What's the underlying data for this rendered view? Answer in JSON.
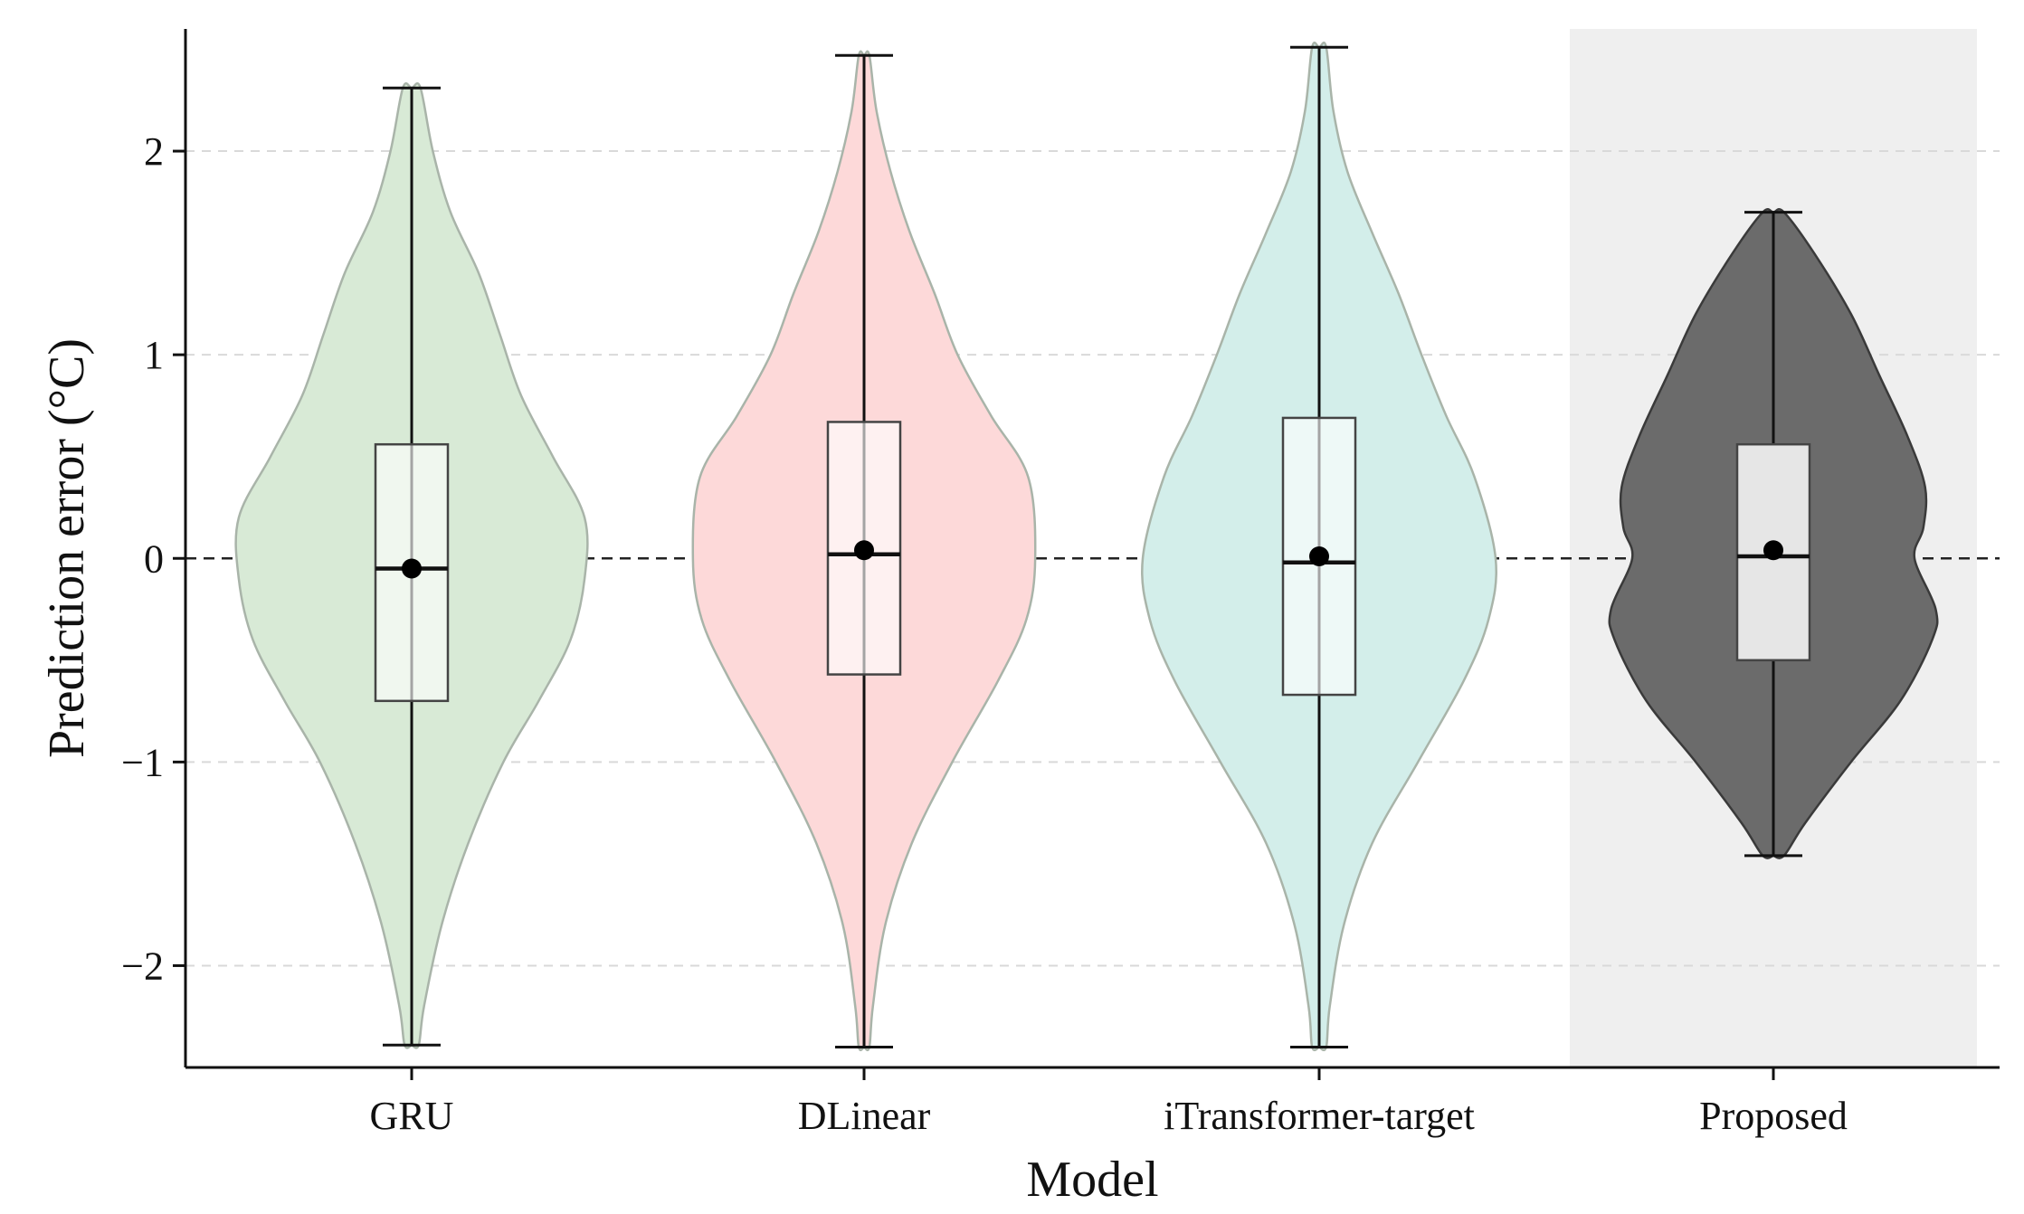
{
  "chart_data": {
    "type": "violin",
    "title": "",
    "xlabel": "Model",
    "ylabel": "Prediction error (°C)",
    "ylim": [
      -2.5,
      2.6
    ],
    "yticks": [
      -2,
      -1,
      0,
      1,
      2
    ],
    "ytick_labels": [
      "−2",
      "−1",
      "0",
      "1",
      "2"
    ],
    "grid": "horizontal dashed",
    "reference_line": 0,
    "highlighted_category": "Proposed",
    "categories": [
      "GRU",
      "DLinear",
      "iTransformer-target",
      "Proposed"
    ],
    "series": [
      {
        "category": "GRU",
        "color": "#d8ead6",
        "min": -2.39,
        "q1": -0.7,
        "median": -0.05,
        "mean": -0.05,
        "q3": 0.56,
        "max": 2.31,
        "density": [
          [
            -2.39,
            0.04
          ],
          [
            -2.2,
            0.07
          ],
          [
            -1.8,
            0.17
          ],
          [
            -1.4,
            0.32
          ],
          [
            -1.0,
            0.52
          ],
          [
            -0.7,
            0.72
          ],
          [
            -0.4,
            0.9
          ],
          [
            -0.1,
            0.98
          ],
          [
            0.2,
            0.98
          ],
          [
            0.5,
            0.8
          ],
          [
            0.8,
            0.62
          ],
          [
            1.1,
            0.5
          ],
          [
            1.4,
            0.38
          ],
          [
            1.7,
            0.22
          ],
          [
            2.0,
            0.12
          ],
          [
            2.31,
            0.05
          ]
        ]
      },
      {
        "category": "DLinear",
        "color": "#fdd9d9",
        "min": -2.4,
        "q1": -0.57,
        "median": 0.02,
        "mean": 0.04,
        "q3": 0.67,
        "max": 2.47,
        "density": [
          [
            -2.4,
            0.03
          ],
          [
            -2.2,
            0.05
          ],
          [
            -1.8,
            0.12
          ],
          [
            -1.4,
            0.27
          ],
          [
            -1.0,
            0.5
          ],
          [
            -0.6,
            0.76
          ],
          [
            -0.3,
            0.92
          ],
          [
            0.0,
            0.97
          ],
          [
            0.4,
            0.93
          ],
          [
            0.7,
            0.72
          ],
          [
            1.0,
            0.53
          ],
          [
            1.3,
            0.4
          ],
          [
            1.6,
            0.26
          ],
          [
            1.9,
            0.15
          ],
          [
            2.2,
            0.07
          ],
          [
            2.47,
            0.03
          ]
        ]
      },
      {
        "category": "iTransformer-target",
        "color": "#d3eeea",
        "min": -2.4,
        "q1": -0.67,
        "median": -0.02,
        "mean": 0.01,
        "q3": 0.69,
        "max": 2.51,
        "density": [
          [
            -2.4,
            0.04
          ],
          [
            -2.2,
            0.06
          ],
          [
            -1.8,
            0.14
          ],
          [
            -1.4,
            0.3
          ],
          [
            -1.0,
            0.56
          ],
          [
            -0.6,
            0.82
          ],
          [
            -0.3,
            0.96
          ],
          [
            0.0,
            1.0
          ],
          [
            0.4,
            0.88
          ],
          [
            0.7,
            0.72
          ],
          [
            1.0,
            0.58
          ],
          [
            1.3,
            0.45
          ],
          [
            1.6,
            0.3
          ],
          [
            1.9,
            0.16
          ],
          [
            2.2,
            0.08
          ],
          [
            2.51,
            0.04
          ]
        ]
      },
      {
        "category": "Proposed",
        "color": "#6b6b6b",
        "min": -1.46,
        "q1": -0.5,
        "median": 0.01,
        "mean": 0.04,
        "q3": 0.56,
        "max": 1.7,
        "density": [
          [
            -1.46,
            0.06
          ],
          [
            -1.3,
            0.18
          ],
          [
            -1.0,
            0.44
          ],
          [
            -0.7,
            0.72
          ],
          [
            -0.4,
            0.9
          ],
          [
            -0.25,
            0.92
          ],
          [
            0.0,
            0.8
          ],
          [
            0.15,
            0.85
          ],
          [
            0.35,
            0.86
          ],
          [
            0.6,
            0.76
          ],
          [
            0.9,
            0.6
          ],
          [
            1.2,
            0.44
          ],
          [
            1.5,
            0.23
          ],
          [
            1.7,
            0.06
          ]
        ]
      }
    ]
  }
}
